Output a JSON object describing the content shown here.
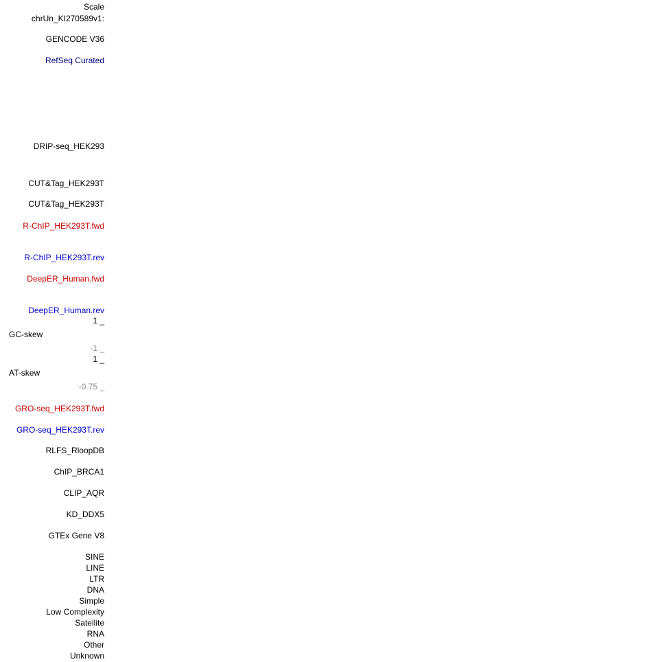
{
  "labels": [
    "Scale",
    "chrUn_KI270589v1:",
    "GENCODE V36",
    "RefSeq Curated",
    "DRIP-seq_HEK293",
    "CUT&Tag_HEK293T",
    "CUT&Tag_HEK293T",
    "R-ChIP_HEK293T.fwd",
    "R-ChIP_HEK293T.rev",
    "DeepER_Human.fwd",
    "DeepER_Human.rev",
    "1 _",
    "GC-skew",
    "-1 _",
    "1 _",
    "AT-skew",
    "-0.75 _",
    "GRO-seq_HEK293T.fwd",
    "GRO-seq_HEK293T.rev",
    "RLFS_RloopDB",
    "ChIP_BRCA1",
    "CLIP_AQR",
    "KD_DDX5",
    "GTEx Gene V8",
    "SINE",
    "LINE",
    "LTR",
    "DNA",
    "Simple",
    "Low Complexity",
    "Satellite",
    "RNA",
    "Other",
    "Unknown"
  ]
}
